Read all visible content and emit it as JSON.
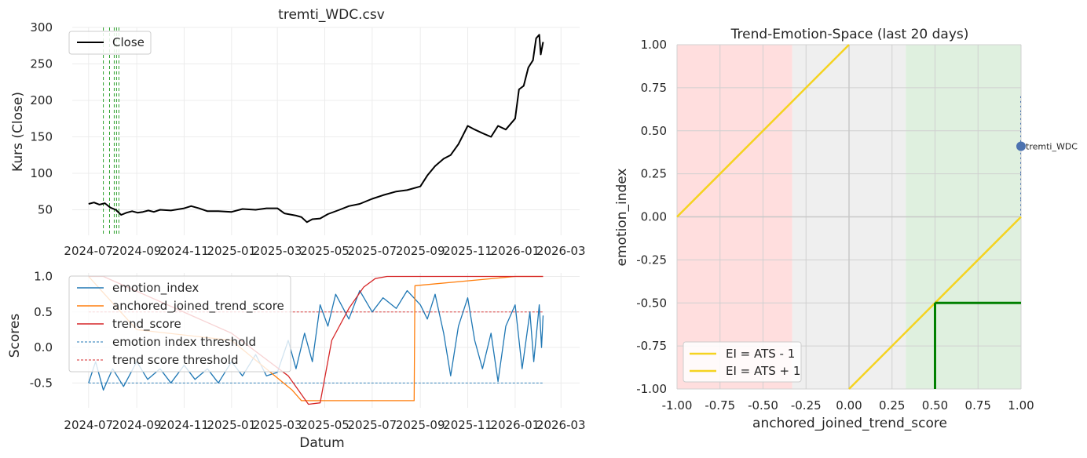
{
  "chart_data": [
    {
      "id": "price",
      "type": "line",
      "title": "tremti_WDC.csv",
      "xlabel": "",
      "ylabel": "Kurs (Close)",
      "x_ticks": [
        "2024-07",
        "2024-09",
        "2024-11",
        "2025-01",
        "2025-03",
        "2025-05",
        "2025-07",
        "2025-09",
        "2025-11",
        "2026-01",
        "2026-03"
      ],
      "y_ticks": [
        "50",
        "100",
        "150",
        "200",
        "250",
        "300"
      ],
      "xlim": [
        "2024-06-10",
        "2026-03-25"
      ],
      "ylim": [
        15,
        300
      ],
      "legend": [
        "Close"
      ],
      "legend_position": "upper left",
      "signal_vlines": [
        "2024-07-20",
        "2024-07-28",
        "2024-08-03",
        "2024-08-06",
        "2024-08-09"
      ],
      "series": [
        {
          "name": "Close",
          "color": "#000000",
          "points": [
            [
              "2024-07-01",
              58
            ],
            [
              "2024-07-08",
              60
            ],
            [
              "2024-07-15",
              57
            ],
            [
              "2024-07-22",
              59
            ],
            [
              "2024-07-29",
              53
            ],
            [
              "2024-08-05",
              50
            ],
            [
              "2024-08-12",
              43
            ],
            [
              "2024-08-19",
              46
            ],
            [
              "2024-08-26",
              48
            ],
            [
              "2024-09-02",
              46
            ],
            [
              "2024-09-09",
              47
            ],
            [
              "2024-09-16",
              49
            ],
            [
              "2024-09-23",
              47
            ],
            [
              "2024-10-01",
              50
            ],
            [
              "2024-10-15",
              49
            ],
            [
              "2024-11-01",
              52
            ],
            [
              "2024-11-10",
              55
            ],
            [
              "2024-11-20",
              52
            ],
            [
              "2024-12-01",
              48
            ],
            [
              "2024-12-15",
              48
            ],
            [
              "2025-01-01",
              47
            ],
            [
              "2025-01-15",
              51
            ],
            [
              "2025-02-01",
              50
            ],
            [
              "2025-02-15",
              52
            ],
            [
              "2025-03-01",
              52
            ],
            [
              "2025-03-10",
              45
            ],
            [
              "2025-03-25",
              42
            ],
            [
              "2025-04-01",
              40
            ],
            [
              "2025-04-08",
              33
            ],
            [
              "2025-04-15",
              37
            ],
            [
              "2025-04-25",
              38
            ],
            [
              "2025-05-05",
              44
            ],
            [
              "2025-05-20",
              50
            ],
            [
              "2025-06-01",
              55
            ],
            [
              "2025-06-15",
              58
            ],
            [
              "2025-07-01",
              65
            ],
            [
              "2025-07-15",
              70
            ],
            [
              "2025-08-01",
              75
            ],
            [
              "2025-08-15",
              77
            ],
            [
              "2025-09-01",
              82
            ],
            [
              "2025-09-10",
              97
            ],
            [
              "2025-09-20",
              110
            ],
            [
              "2025-10-01",
              120
            ],
            [
              "2025-10-10",
              125
            ],
            [
              "2025-10-20",
              140
            ],
            [
              "2025-11-01",
              165
            ],
            [
              "2025-11-10",
              160
            ],
            [
              "2025-11-20",
              155
            ],
            [
              "2025-12-01",
              150
            ],
            [
              "2025-12-10",
              165
            ],
            [
              "2025-12-20",
              160
            ],
            [
              "2026-01-01",
              175
            ],
            [
              "2026-01-06",
              215
            ],
            [
              "2026-01-12",
              220
            ],
            [
              "2026-01-18",
              245
            ],
            [
              "2026-01-24",
              255
            ],
            [
              "2026-01-28",
              285
            ],
            [
              "2026-02-01",
              290
            ],
            [
              "2026-02-03",
              263
            ],
            [
              "2026-02-06",
              280
            ]
          ]
        }
      ]
    },
    {
      "id": "scores",
      "type": "line",
      "title": "",
      "xlabel": "Datum",
      "ylabel": "Scores",
      "x_ticks": [
        "2024-07",
        "2024-09",
        "2024-11",
        "2025-01",
        "2025-03",
        "2025-05",
        "2025-07",
        "2025-09",
        "2025-11",
        "2026-01",
        "2026-03"
      ],
      "y_ticks": [
        "-0.5",
        "0.0",
        "0.5",
        "1.0"
      ],
      "xlim": [
        "2024-06-10",
        "2026-03-25"
      ],
      "ylim": [
        -0.85,
        1.05
      ],
      "legend": [
        "emotion_index",
        "anchored_joined_trend_score",
        "trend_score",
        "emotion index threshold",
        "trend score threshold"
      ],
      "legend_position": "upper left",
      "thresholds": {
        "emotion_index": -0.5,
        "trend_score": 0.5
      },
      "series": [
        {
          "name": "emotion_index",
          "color": "#1f77b4",
          "points": [
            [
              "2024-07-01",
              -0.5
            ],
            [
              "2024-07-10",
              -0.2
            ],
            [
              "2024-07-20",
              -0.6
            ],
            [
              "2024-08-01",
              -0.3
            ],
            [
              "2024-08-15",
              -0.55
            ],
            [
              "2024-09-01",
              -0.2
            ],
            [
              "2024-09-15",
              -0.45
            ],
            [
              "2024-10-01",
              -0.3
            ],
            [
              "2024-10-15",
              -0.5
            ],
            [
              "2024-11-01",
              -0.25
            ],
            [
              "2024-11-15",
              -0.45
            ],
            [
              "2024-12-01",
              -0.3
            ],
            [
              "2024-12-15",
              -0.5
            ],
            [
              "2025-01-01",
              -0.2
            ],
            [
              "2025-01-15",
              -0.4
            ],
            [
              "2025-02-01",
              -0.1
            ],
            [
              "2025-02-15",
              -0.4
            ],
            [
              "2025-03-01",
              -0.35
            ],
            [
              "2025-03-15",
              0.1
            ],
            [
              "2025-03-25",
              -0.3
            ],
            [
              "2025-04-05",
              0.2
            ],
            [
              "2025-04-15",
              -0.2
            ],
            [
              "2025-04-25",
              0.6
            ],
            [
              "2025-05-05",
              0.3
            ],
            [
              "2025-05-15",
              0.75
            ],
            [
              "2025-06-01",
              0.4
            ],
            [
              "2025-06-15",
              0.8
            ],
            [
              "2025-07-01",
              0.5
            ],
            [
              "2025-07-15",
              0.7
            ],
            [
              "2025-08-01",
              0.55
            ],
            [
              "2025-08-15",
              0.8
            ],
            [
              "2025-09-01",
              0.6
            ],
            [
              "2025-09-10",
              0.4
            ],
            [
              "2025-09-20",
              0.75
            ],
            [
              "2025-10-01",
              0.2
            ],
            [
              "2025-10-10",
              -0.4
            ],
            [
              "2025-10-20",
              0.3
            ],
            [
              "2025-11-01",
              0.7
            ],
            [
              "2025-11-10",
              0.1
            ],
            [
              "2025-11-20",
              -0.3
            ],
            [
              "2025-12-01",
              0.2
            ],
            [
              "2025-12-10",
              -0.48
            ],
            [
              "2025-12-20",
              0.3
            ],
            [
              "2026-01-01",
              0.6
            ],
            [
              "2026-01-10",
              -0.3
            ],
            [
              "2026-01-20",
              0.5
            ],
            [
              "2026-01-25",
              -0.2
            ],
            [
              "2026-02-01",
              0.6
            ],
            [
              "2026-02-04",
              0.0
            ],
            [
              "2026-02-06",
              0.45
            ]
          ]
        },
        {
          "name": "anchored_joined_trend_score",
          "color": "#ff7f0e",
          "points": [
            [
              "2024-07-01",
              1.0
            ],
            [
              "2024-09-01",
              0.25
            ],
            [
              "2025-01-01",
              0.1
            ],
            [
              "2025-03-20",
              -0.6
            ],
            [
              "2025-04-01",
              -0.75
            ],
            [
              "2025-04-15",
              -0.75
            ],
            [
              "2025-05-01",
              -0.75
            ],
            [
              "2025-08-24",
              -0.75
            ],
            [
              "2025-08-25",
              0.87
            ],
            [
              "2026-01-01",
              1.0
            ],
            [
              "2026-02-06",
              1.0
            ]
          ]
        },
        {
          "name": "trend_score",
          "color": "#d62728",
          "points": [
            [
              "2024-07-01",
              1.0
            ],
            [
              "2024-07-20",
              1.0
            ],
            [
              "2025-01-01",
              0.2
            ],
            [
              "2025-03-15",
              -0.4
            ],
            [
              "2025-04-10",
              -0.8
            ],
            [
              "2025-04-25",
              -0.78
            ],
            [
              "2025-05-10",
              0.1
            ],
            [
              "2025-06-01",
              0.55
            ],
            [
              "2025-06-20",
              0.85
            ],
            [
              "2025-07-05",
              0.97
            ],
            [
              "2025-07-20",
              1.0
            ],
            [
              "2026-02-06",
              1.0
            ]
          ]
        }
      ]
    },
    {
      "id": "space",
      "type": "scatter",
      "title": "Trend-Emotion-Space (last 20 days)",
      "xlabel": "anchored_joined_trend_score",
      "ylabel": "emotion_index",
      "x_ticks": [
        "-1.00",
        "-0.75",
        "-0.50",
        "-0.25",
        "0.00",
        "0.25",
        "0.50",
        "0.75",
        "1.00"
      ],
      "y_ticks": [
        "-1.00",
        "-0.75",
        "-0.50",
        "-0.25",
        "0.00",
        "0.25",
        "0.50",
        "0.75",
        "1.00"
      ],
      "xlim": [
        -1,
        1
      ],
      "ylim": [
        -1,
        1
      ],
      "legend": [
        "EI = ATS - 1",
        "EI = ATS + 1"
      ],
      "legend_position": "lower left",
      "regions": [
        {
          "x": [
            -1,
            -0.33
          ],
          "color": "#ffdede"
        },
        {
          "x": [
            -0.33,
            0.33
          ],
          "color": "#efefef"
        },
        {
          "x": [
            0.33,
            1
          ],
          "color": "#dff0df"
        }
      ],
      "diagonal_color": "#f5d320",
      "signal_box": {
        "x": 0.5,
        "y": -0.5,
        "color": "#008000"
      },
      "points": [
        {
          "label": "tremti_WDC",
          "x": 1.0,
          "y": 0.41,
          "color": "#4c72b0"
        }
      ],
      "trail_y": [
        0.7,
        0.6,
        0.5,
        0.4,
        0.25,
        0.1,
        0.0
      ]
    }
  ]
}
